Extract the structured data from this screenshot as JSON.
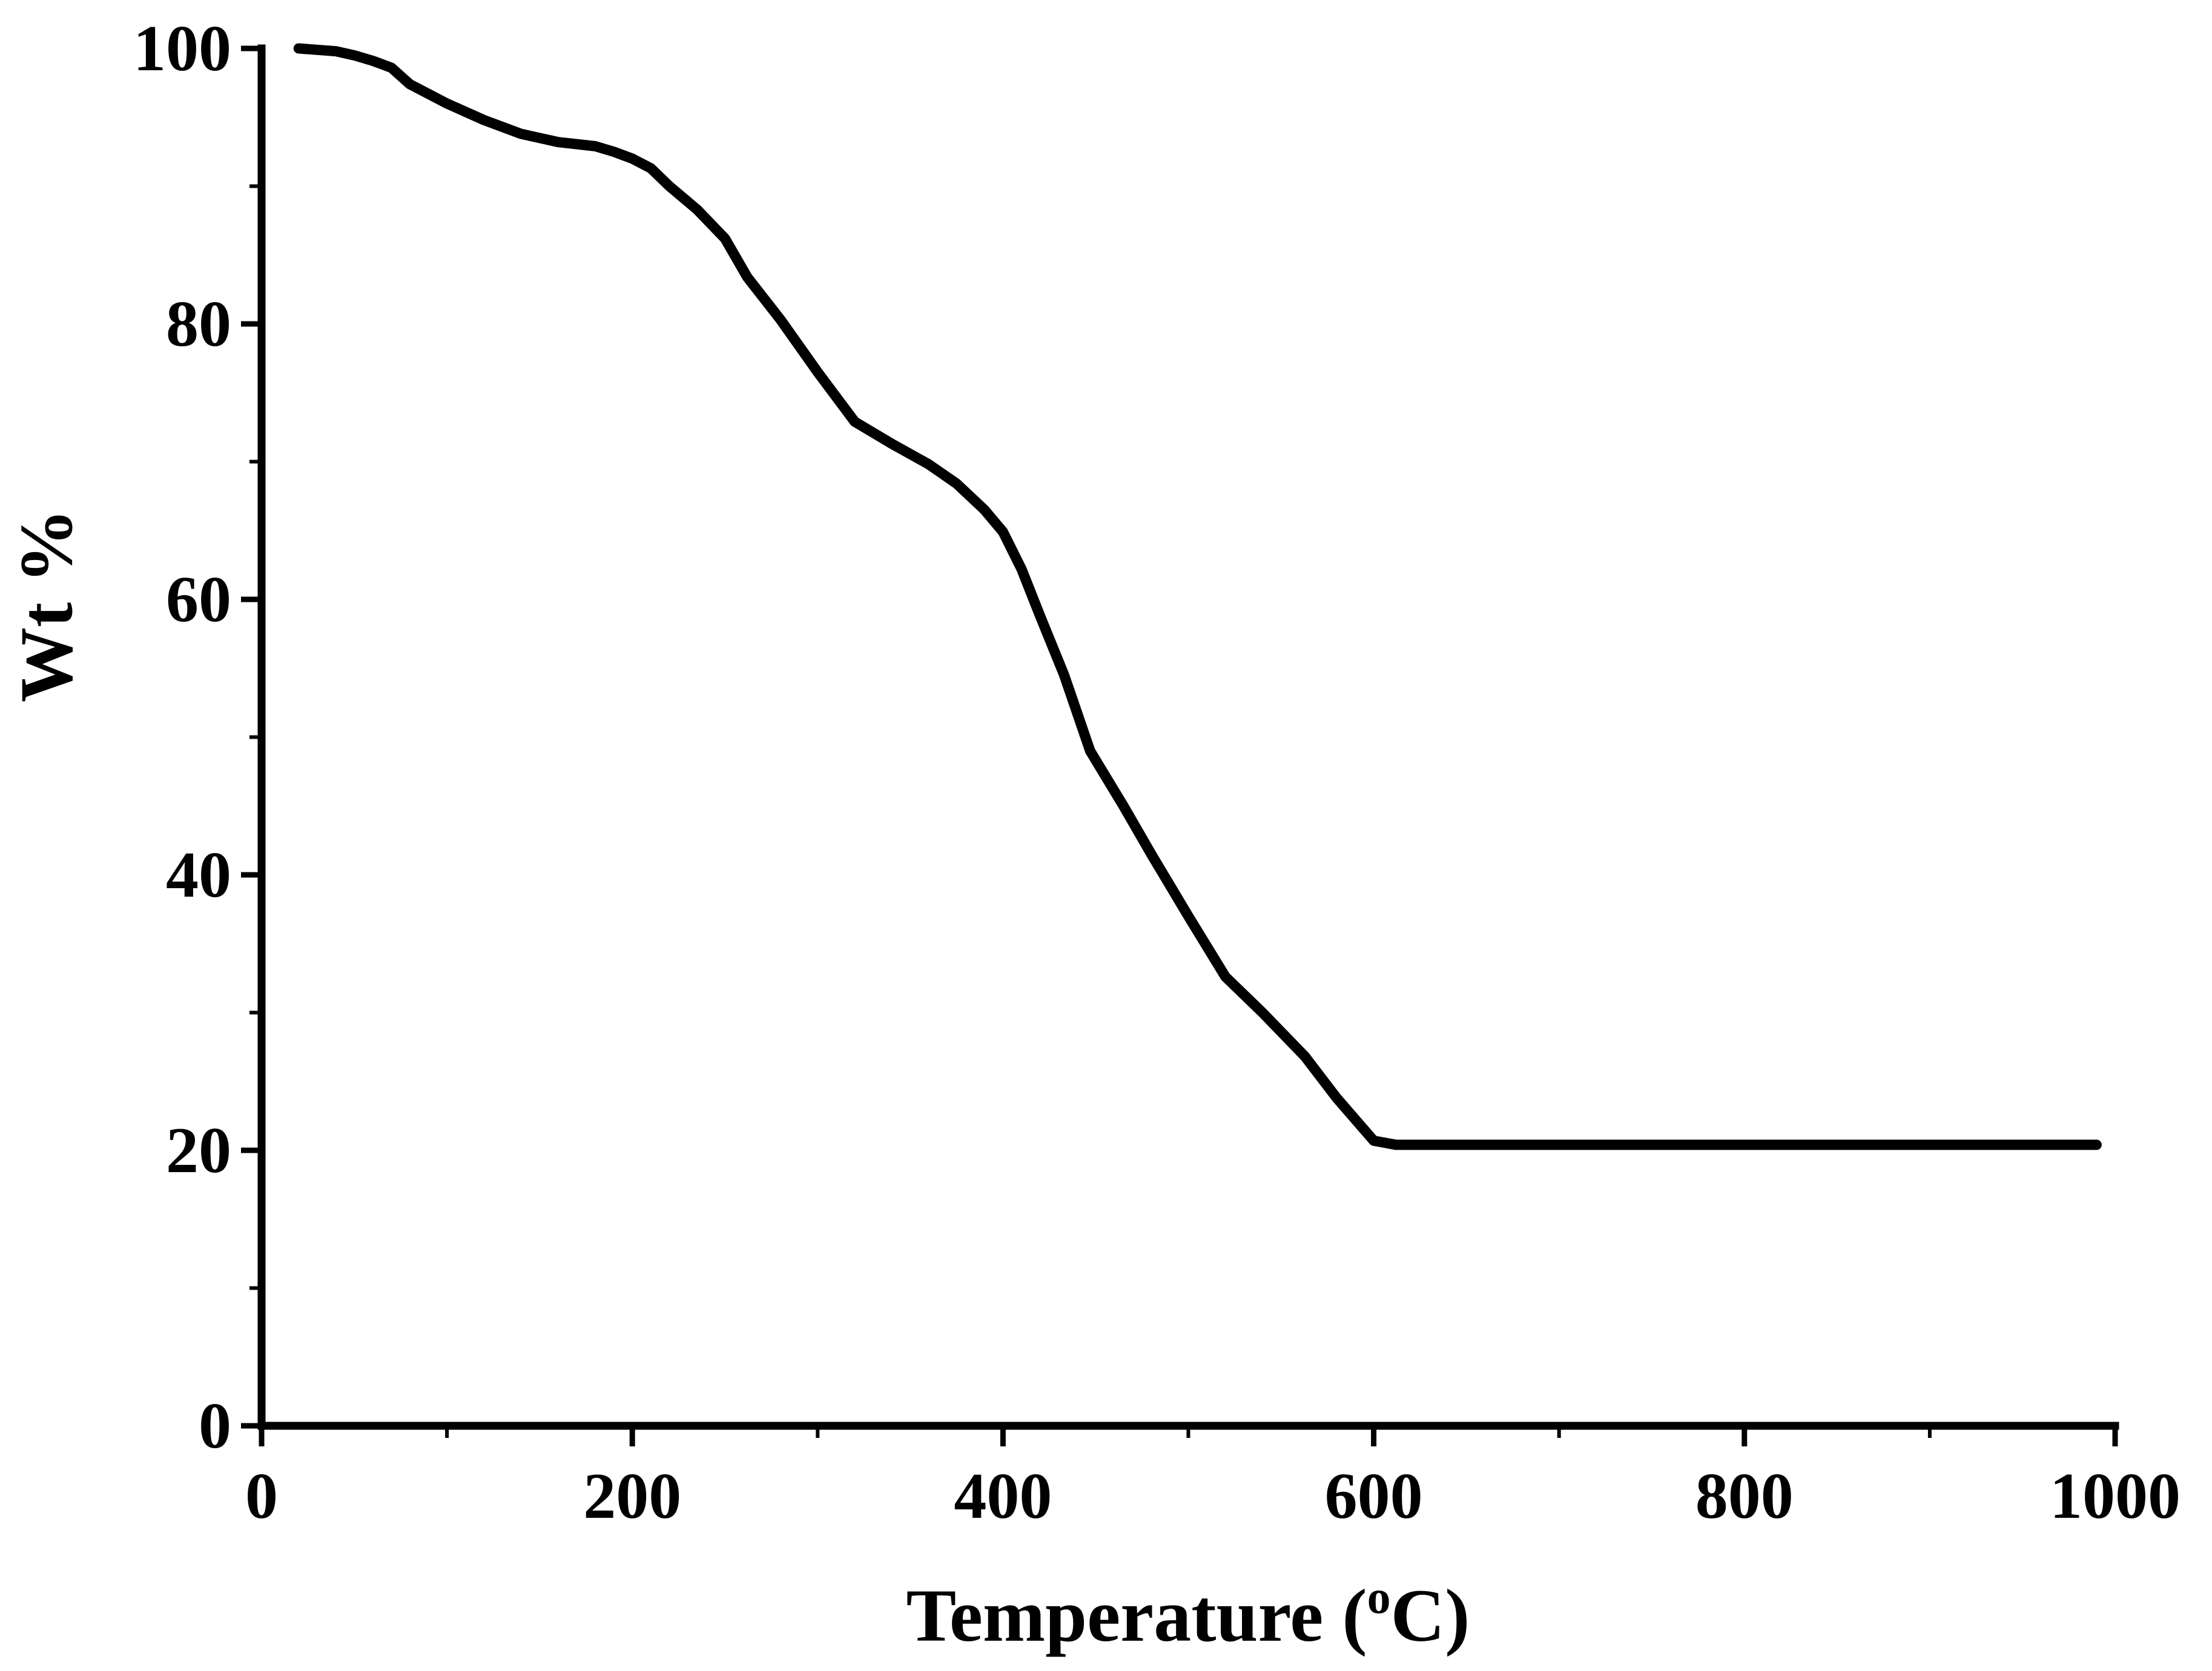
{
  "chart_data": {
    "type": "line",
    "title": "",
    "xlabel": "Temperature (",
    "xlabel_sup": "o",
    "xlabel_unit": "C)",
    "ylabel": "Wt %",
    "xlim": [
      0,
      1000
    ],
    "ylim": [
      0,
      100
    ],
    "x_ticks": [
      "0",
      "200",
      "400",
      "600",
      "800",
      "1000"
    ],
    "x_tick_values": [
      0,
      200,
      400,
      600,
      800,
      1000
    ],
    "x_minor_tick_values": [
      100,
      300,
      500,
      700,
      900
    ],
    "y_ticks": [
      "0",
      "20",
      "40",
      "60",
      "80",
      "100"
    ],
    "y_tick_values": [
      0,
      20,
      40,
      60,
      80,
      100
    ],
    "y_minor_tick_values": [
      10,
      30,
      50,
      70,
      90
    ],
    "grid": false,
    "series": [
      {
        "name": "Wt %",
        "color": "#000000",
        "x": [
          20,
          30,
          40,
          50,
          60,
          70,
          80,
          100,
          120,
          140,
          160,
          180,
          190,
          200,
          210,
          220,
          235,
          250,
          262,
          280,
          300,
          320,
          340,
          360,
          375,
          390,
          400,
          410,
          420,
          433,
          447,
          465,
          480,
          500,
          520,
          540,
          563,
          580,
          600,
          612,
          650,
          700,
          800,
          900,
          990
        ],
        "y": [
          100,
          99.9,
          99.8,
          99.5,
          99.1,
          98.6,
          97.4,
          96.0,
          94.8,
          93.8,
          93.2,
          92.9,
          92.5,
          92.0,
          91.3,
          90.0,
          88.3,
          86.2,
          83.4,
          80.3,
          76.5,
          72.9,
          71.3,
          69.8,
          68.4,
          66.5,
          64.9,
          62.2,
          58.8,
          54.5,
          49.0,
          45.0,
          41.5,
          37.0,
          32.6,
          30.0,
          26.8,
          23.8,
          20.7,
          20.4,
          20.4,
          20.4,
          20.4,
          20.4,
          20.4
        ]
      }
    ]
  }
}
